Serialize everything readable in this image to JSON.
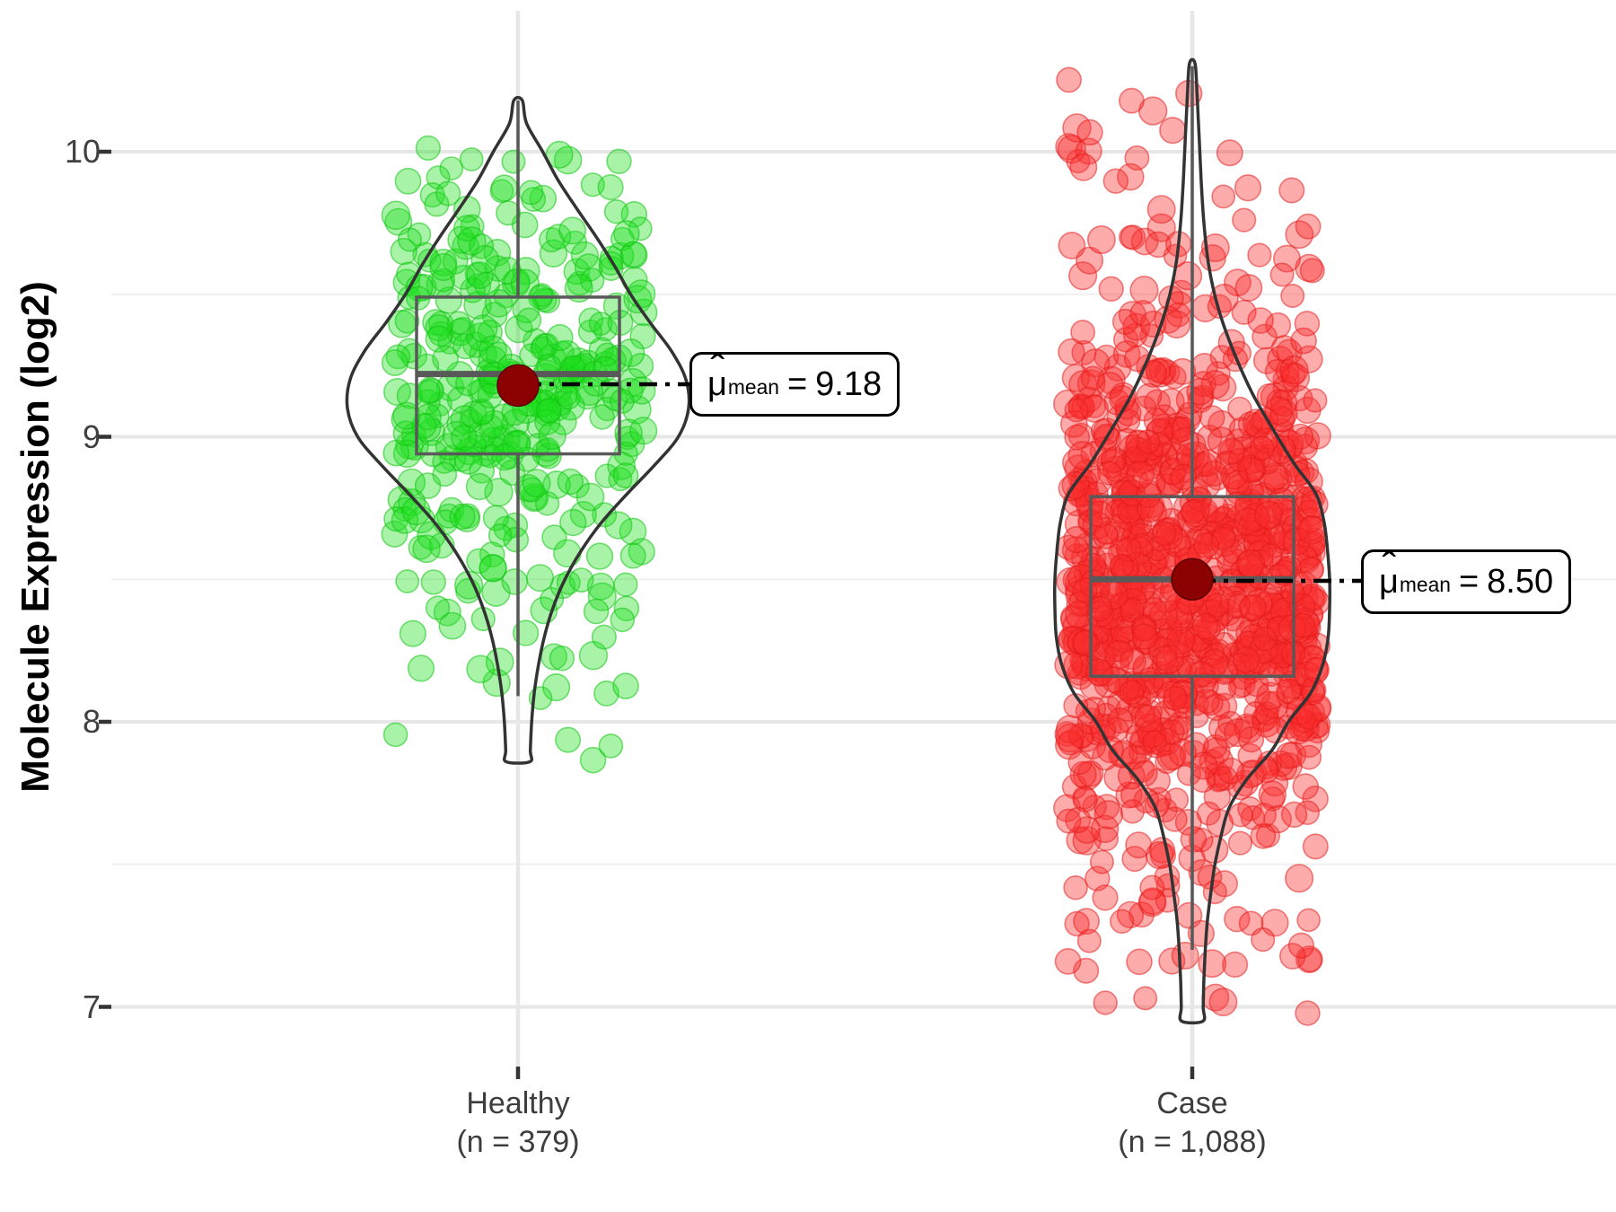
{
  "chart_data": {
    "type": "violin-box-jitter",
    "title": "",
    "ylabel": "Molecule Expression (log2)",
    "xlabel": "",
    "y_tick_labels": [
      "10",
      "9",
      "8",
      "7"
    ],
    "y_tick_values": [
      10,
      9,
      8,
      7
    ],
    "y_minor_tick_values": [
      9.5,
      8.5,
      7.5
    ],
    "ylim": [
      6.8,
      10.5
    ],
    "grid": "major+minor",
    "legend": "none",
    "groups": [
      {
        "name": "Healthy",
        "x_label_line1": "Healthy",
        "x_label_line2": "(n = 379)",
        "n": 379,
        "point_fill": "rgba(30,224,30,0.38)",
        "point_stroke": "rgba(18,196,18,0.55)",
        "stats": {
          "mean": 9.18,
          "median": 9.22,
          "q1": 8.94,
          "q3": 9.49,
          "whisker_low": 8.09,
          "whisker_high": 10.18,
          "min": 7.86,
          "max": 10.18
        },
        "mean_label": {
          "hat": "ˆ",
          "mu": "μ",
          "sub": "mean",
          "eq": "=",
          "value": "9.18"
        },
        "violin_profile": [
          [
            10.18,
            0.025
          ],
          [
            10.1,
            0.05
          ],
          [
            10.0,
            0.145
          ],
          [
            9.9,
            0.235
          ],
          [
            9.8,
            0.345
          ],
          [
            9.7,
            0.46
          ],
          [
            9.6,
            0.565
          ],
          [
            9.5,
            0.66
          ],
          [
            9.4,
            0.775
          ],
          [
            9.3,
            0.9
          ],
          [
            9.2,
            0.985
          ],
          [
            9.1,
            1.0
          ],
          [
            9.0,
            0.94
          ],
          [
            8.9,
            0.8
          ],
          [
            8.8,
            0.64
          ],
          [
            8.7,
            0.49
          ],
          [
            8.6,
            0.37
          ],
          [
            8.5,
            0.275
          ],
          [
            8.4,
            0.205
          ],
          [
            8.3,
            0.155
          ],
          [
            8.2,
            0.12
          ],
          [
            8.1,
            0.095
          ],
          [
            8.0,
            0.08
          ],
          [
            7.9,
            0.072
          ],
          [
            7.86,
            0.07
          ]
        ]
      },
      {
        "name": "Case",
        "x_label_line1": "Case",
        "x_label_line2": "(n = 1,088)",
        "n": 1088,
        "point_fill": "rgba(250,45,45,0.40)",
        "point_stroke": "rgba(228,24,24,0.52)",
        "stats": {
          "mean": 8.5,
          "median": 8.5,
          "q1": 8.16,
          "q3": 8.79,
          "whisker_low": 7.2,
          "whisker_high": 10.3,
          "min": 6.95,
          "max": 10.31
        },
        "mean_label": {
          "hat": "ˆ",
          "mu": "μ",
          "sub": "mean",
          "eq": "=",
          "value": "8.50"
        },
        "violin_profile": [
          [
            10.31,
            0.02
          ],
          [
            10.2,
            0.035
          ],
          [
            10.05,
            0.05
          ],
          [
            9.9,
            0.065
          ],
          [
            9.75,
            0.085
          ],
          [
            9.6,
            0.12
          ],
          [
            9.45,
            0.19
          ],
          [
            9.3,
            0.3
          ],
          [
            9.15,
            0.44
          ],
          [
            9.0,
            0.62
          ],
          [
            8.9,
            0.75
          ],
          [
            8.8,
            0.9
          ],
          [
            8.7,
            0.96
          ],
          [
            8.6,
            0.985
          ],
          [
            8.5,
            1.0
          ],
          [
            8.4,
            1.0
          ],
          [
            8.3,
            0.99
          ],
          [
            8.2,
            0.95
          ],
          [
            8.1,
            0.86
          ],
          [
            8.0,
            0.7
          ],
          [
            7.9,
            0.58
          ],
          [
            7.8,
            0.4
          ],
          [
            7.7,
            0.27
          ],
          [
            7.6,
            0.21
          ],
          [
            7.5,
            0.165
          ],
          [
            7.4,
            0.135
          ],
          [
            7.3,
            0.11
          ],
          [
            7.2,
            0.095
          ],
          [
            7.1,
            0.085
          ],
          [
            7.0,
            0.08
          ],
          [
            6.95,
            0.078
          ]
        ]
      }
    ],
    "style": {
      "mean_point_color": "#8B0000",
      "mean_point_stroke": "#5E0000",
      "violin_outline_color": "#333333",
      "box_color": "#595959",
      "grid_major_color": "#E7E7E7",
      "grid_minor_color": "#F2F2F2",
      "tick_mark_color": "#333333",
      "axis_text_color": "#404040",
      "background": "#FFFFFF",
      "annotation_border": "#000000",
      "connector_color": "#000000"
    }
  }
}
